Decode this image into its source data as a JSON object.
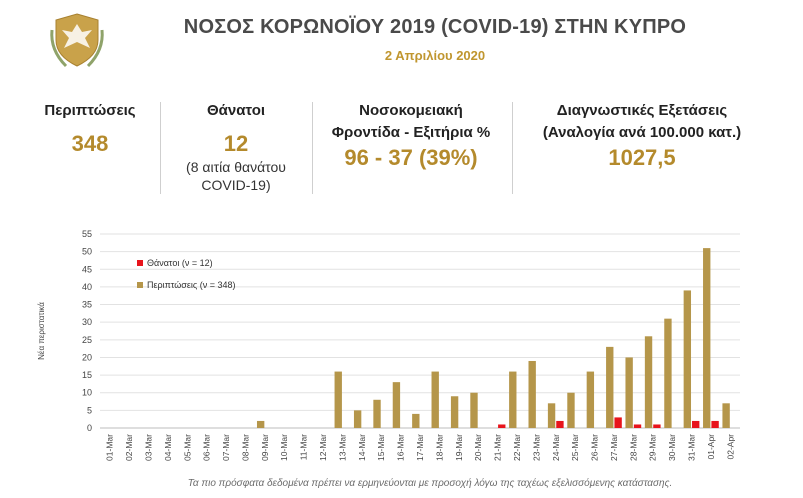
{
  "header": {
    "title": "ΝΟΣΟΣ ΚΟΡΩΝΟΪΟΥ 2019 (COVID-19) ΣΤΗΝ ΚΥΠΡΟ",
    "date": "2 Απριλίου 2020"
  },
  "stats": {
    "cases": {
      "label": "Περιπτώσεις",
      "value": "348"
    },
    "deaths": {
      "label": "Θάνατοι",
      "value": "12",
      "note_line1": "(8 αιτία θανάτου",
      "note_line2": "COVID-19)"
    },
    "hospital": {
      "label_line1": "Νοσοκομειακή",
      "label_line2": "Φροντίδα - Εξιτήρια %",
      "value": "96 - 37 (39%)"
    },
    "tests": {
      "label_line1": "Διαγνωστικές Εξετάσεις",
      "label_line2": "(Αναλογία ανά 100.000 κατ.)",
      "value": "1027,5"
    }
  },
  "footnote": "Τα πιο πρόσφατα δεδομένα πρέπει να ερμηνεύονται με προσοχή λόγω της ταχέως εξελισσόμενης κατάστασης.",
  "colors": {
    "cases": "#b5964a",
    "deaths": "#e8141c",
    "accent": "#c0962f"
  },
  "chart_data": {
    "type": "bar",
    "ylabel": "Νέα περιστατικά",
    "xlabel": "",
    "ylim": [
      0,
      55
    ],
    "yticks": [
      0,
      5,
      10,
      15,
      20,
      25,
      30,
      35,
      40,
      45,
      50,
      55
    ],
    "grid": true,
    "legend_position": "top-left",
    "categories": [
      "01-Mar",
      "02-Mar",
      "03-Mar",
      "04-Mar",
      "05-Mar",
      "06-Mar",
      "07-Mar",
      "08-Mar",
      "09-Mar",
      "10-Mar",
      "11-Mar",
      "12-Mar",
      "13-Mar",
      "14-Mar",
      "15-Mar",
      "16-Mar",
      "17-Mar",
      "18-Mar",
      "19-Mar",
      "20-Mar",
      "21-Mar",
      "22-Mar",
      "23-Mar",
      "24-Mar",
      "25-Mar",
      "26-Mar",
      "27-Mar",
      "28-Mar",
      "29-Mar",
      "30-Mar",
      "31-Mar",
      "01-Apr",
      "02-Apr"
    ],
    "series": [
      {
        "name": "Θάνατοι (ν = 12)",
        "key": "deaths",
        "values": [
          0,
          0,
          0,
          0,
          0,
          0,
          0,
          0,
          0,
          0,
          0,
          0,
          0,
          0,
          0,
          0,
          0,
          0,
          0,
          0,
          1,
          0,
          0,
          2,
          0,
          0,
          3,
          1,
          1,
          0,
          2,
          2,
          0
        ]
      },
      {
        "name": "Περιπτώσεις (ν = 348)",
        "key": "cases",
        "values": [
          0,
          0,
          0,
          0,
          0,
          0,
          0,
          0,
          2,
          0,
          0,
          0,
          16,
          5,
          8,
          13,
          4,
          16,
          9,
          10,
          0,
          16,
          19,
          7,
          10,
          16,
          23,
          20,
          26,
          31,
          39,
          51,
          7
        ]
      }
    ]
  }
}
